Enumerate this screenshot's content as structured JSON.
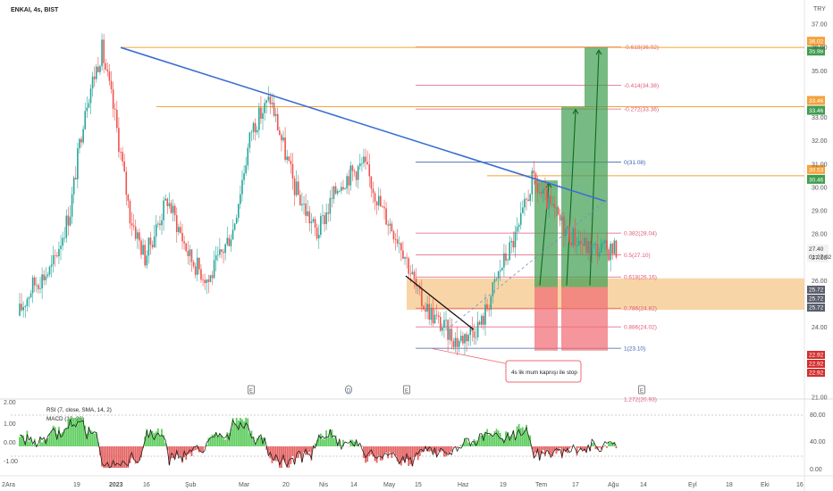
{
  "symbol_label": "ENKAI, 4s, BIST",
  "currency": "TRY",
  "last_price": "27.40",
  "countdown": "01:27:02",
  "colors": {
    "up": "#26a69a",
    "down": "#ef5350",
    "trend": "#3b6fd1",
    "level_orange": "#f4a23a",
    "fib_pink": "#e05a78",
    "fib_blue": "#3b5fb0",
    "zone": "#f5c78a",
    "tp_green": "#3f9d4f",
    "stop_red": "#ef6a72",
    "rsi_fill_up": "#43c443",
    "rsi_fill_down": "#e04848"
  },
  "chart_data": {
    "type": "candlestick",
    "title": "ENKAI, 4s, BIST",
    "ylabel": "TRY",
    "ylim": [
      21.0,
      37.5
    ],
    "y_ticks": [
      "37.00",
      "36.00",
      "35.00",
      "33.00",
      "32.00",
      "31.00",
      "30.00",
      "29.00",
      "28.00",
      "27.00",
      "26.00",
      "24.00",
      "21.00"
    ],
    "x_ticks": [
      "Ara",
      "19",
      "2023",
      "16",
      "Şub",
      "Mar",
      "20",
      "Nis",
      "14",
      "May",
      "15",
      "Haz",
      "19",
      "Tem",
      "17",
      "Ağu",
      "14",
      "Eyl",
      "18",
      "Eki",
      "16"
    ],
    "price_path": {
      "x_index": [
        0,
        8,
        18,
        28,
        36,
        45,
        52,
        60,
        68,
        80,
        92,
        102,
        115,
        125,
        135,
        148,
        160,
        172,
        185,
        195,
        205,
        215,
        225,
        235,
        248,
        258,
        268,
        275,
        285,
        295,
        305,
        315,
        325
      ],
      "close": [
        24.5,
        25.8,
        26.5,
        29.0,
        33.5,
        35.9,
        33.0,
        28.8,
        27.0,
        29.5,
        27.0,
        26.0,
        28.2,
        32.5,
        33.8,
        30.0,
        28.0,
        30.2,
        31.0,
        29.0,
        27.6,
        25.2,
        24.2,
        23.4,
        24.2,
        26.5,
        28.2,
        30.3,
        29.1,
        28.0,
        27.4,
        27.3,
        27.4
      ]
    },
    "trendline": {
      "from_price": 36.0,
      "to_price": 29.4
    },
    "horizontal_levels": [
      {
        "label": "36.02",
        "alt": "35.98",
        "price": 36.0
      },
      {
        "label": "33.46",
        "alt": "33.46",
        "price": 33.46
      },
      {
        "label": "30.53",
        "alt": "30.46",
        "price": 30.5
      }
    ],
    "fib_levels": [
      {
        "label": "-0.618(36.02)",
        "price": 36.02
      },
      {
        "label": "-0.414(34.38)",
        "price": 34.38
      },
      {
        "label": "-0.272(33.36)",
        "price": 33.36
      },
      {
        "label": "0(31.08)",
        "price": 31.08
      },
      {
        "label": "0.382(28.04)",
        "price": 28.04
      },
      {
        "label": "0.5(27.10)",
        "price": 27.1
      },
      {
        "label": "0.618(26.16)",
        "price": 26.16
      },
      {
        "label": "0.786(24.82)",
        "price": 24.82
      },
      {
        "label": "0.886(24.02)",
        "price": 24.02
      },
      {
        "label": "1(23.10)",
        "price": 23.1
      },
      {
        "label": "1.272(20.93)",
        "price": 20.93
      }
    ],
    "zone": {
      "top": 26.1,
      "bottom": 24.75
    },
    "right_badges": [
      "25.72",
      "25.72",
      "25.72",
      "22.92",
      "22.92",
      "22.92"
    ],
    "annotation": "4s lik mum kapnışı ile stop",
    "event_markers": [
      "E",
      "D",
      "E",
      "E"
    ],
    "indicator": {
      "label_rsi": "RSI (7, close, SMA, 14, 2)",
      "label_macd": "MACD (12, 26)",
      "left_ticks": [
        "2.00",
        "1.00",
        "0.00",
        "-1.00"
      ],
      "right_ticks": [
        "80.00",
        "40.00",
        "0.00"
      ]
    }
  }
}
